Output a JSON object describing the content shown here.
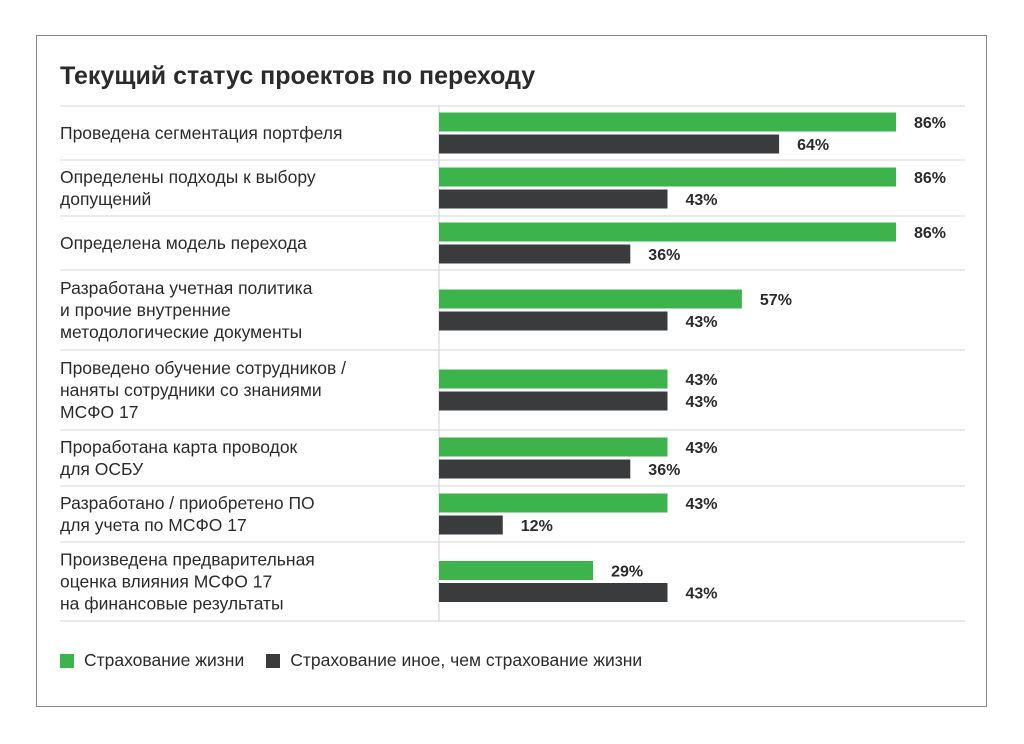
{
  "chart_data": {
    "type": "bar",
    "orientation": "horizontal",
    "title": "Текущий статус проектов по переходу",
    "categories": [
      [
        "Проведена сегментация портфеля"
      ],
      [
        "Определены подходы к выбору",
        "допущений"
      ],
      [
        "Определена модель перехода"
      ],
      [
        "Разработана учетная политика",
        "и прочие внутренние",
        "методологические документы"
      ],
      [
        "Проведено обучение сотрудников /",
        "наняты сотрудники со знаниями",
        "МСФО 17"
      ],
      [
        "Проработана карта проводок",
        "для ОСБУ"
      ],
      [
        "Разработано / приобретено ПО",
        "для учета по МСФО 17"
      ],
      [
        "Произведена предварительная",
        "оценка влияния МСФО 17",
        "на финансовые результаты"
      ]
    ],
    "series": [
      {
        "name": "Страхование жизни",
        "color": "#3cb44b",
        "values": [
          86,
          86,
          86,
          57,
          43,
          43,
          43,
          29
        ]
      },
      {
        "name": "Страхование иное, чем страхование жизни",
        "color": "#3a3b3d",
        "values": [
          64,
          43,
          36,
          43,
          43,
          36,
          12,
          43
        ]
      }
    ],
    "value_suffix": "%",
    "legend_position": "bottom-left",
    "grid": false
  }
}
